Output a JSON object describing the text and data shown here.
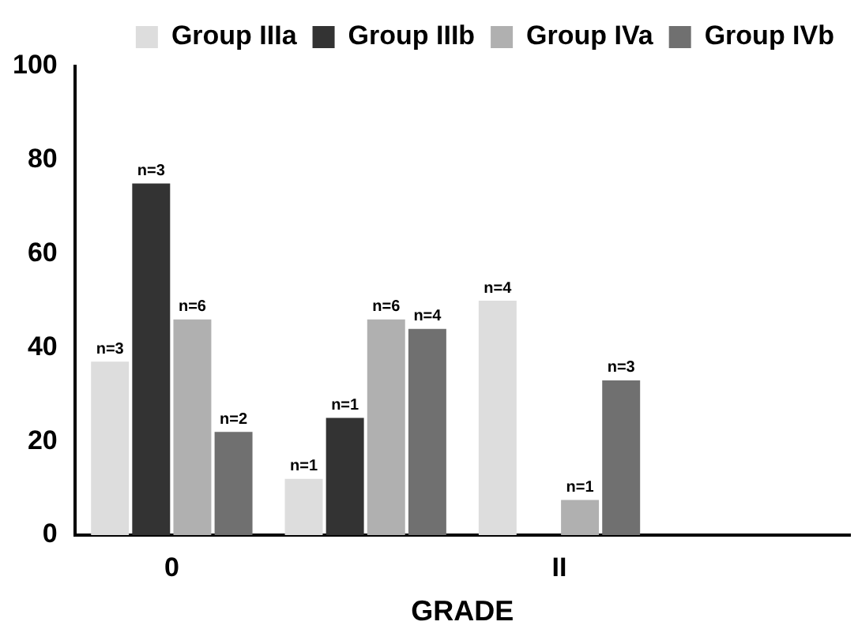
{
  "chart_data": {
    "type": "bar",
    "xlabel": "GRADE",
    "categories": [
      "0",
      null,
      "II",
      null
    ],
    "series": [
      {
        "name": "Group IIIa",
        "color": "#dddddd",
        "values": [
          37,
          12,
          50,
          null
        ]
      },
      {
        "name": "Group IIIb",
        "color": "#333333",
        "values": [
          75,
          25,
          null,
          null
        ]
      },
      {
        "name": "Group IVa",
        "color": "#b0b0b0",
        "values": [
          46,
          46,
          7.5,
          null
        ]
      },
      {
        "name": "Group IVb",
        "color": "#707070",
        "values": [
          22,
          44,
          33,
          null
        ]
      }
    ],
    "annotations": [
      "n=3",
      "n=3",
      "n=6",
      "n=2",
      "n=1",
      "n=1",
      "n=6",
      "n=4",
      "n=4",
      "n=1",
      "n=3"
    ],
    "ylim": [
      0,
      100
    ],
    "yticks": [
      0,
      20,
      40,
      60,
      80,
      100
    ],
    "grid": false,
    "legend": "top right"
  }
}
